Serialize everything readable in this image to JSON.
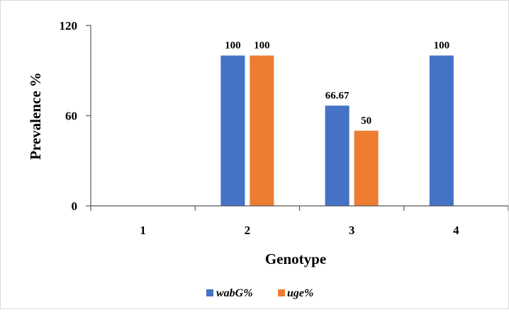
{
  "chart_data": {
    "type": "bar",
    "title": "",
    "xlabel": "Genotype",
    "ylabel": "Prevalence %",
    "categories": [
      "1",
      "2",
      "3",
      "4"
    ],
    "ylim": [
      0,
      120
    ],
    "yticks": [
      "0",
      "60",
      "120"
    ],
    "grid": false,
    "legend_position": "bottom",
    "series": [
      {
        "name": "wabG%",
        "color": "#4472C4",
        "values": [
          null,
          100,
          66.67,
          100
        ],
        "labels": [
          "",
          "100",
          "66.67",
          "100"
        ]
      },
      {
        "name": "uge%",
        "color": "#ED7D31",
        "values": [
          null,
          100,
          50,
          null
        ],
        "labels": [
          "",
          "100",
          "50",
          ""
        ]
      }
    ]
  }
}
